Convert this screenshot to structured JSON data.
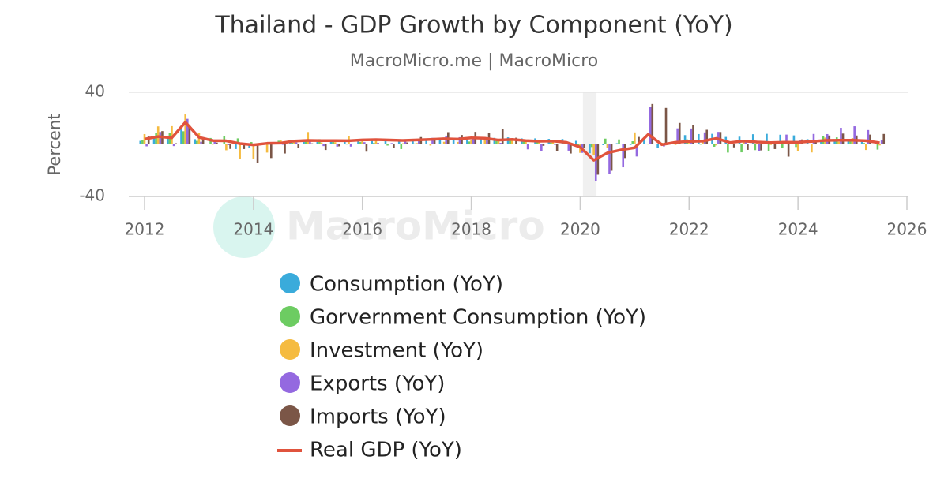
{
  "chart_data": {
    "type": "bar",
    "title": "Thailand - GDP Growth by Component (YoY)",
    "subtitle": "MacroMicro.me | MacroMicro",
    "watermark": "MacroMicro",
    "y_label": "Percent",
    "xlim": [
      2012,
      2026
    ],
    "xticks": [
      2012,
      2014,
      2016,
      2018,
      2020,
      2022,
      2024,
      2026
    ],
    "ylim": [
      -40,
      40
    ],
    "yticks": [
      -40,
      40
    ],
    "grid": true,
    "shaded_band": [
      2020.05,
      2020.3
    ],
    "x": [
      2012,
      2012.25,
      2012.5,
      2012.75,
      2013,
      2013.25,
      2013.5,
      2013.75,
      2014,
      2014.25,
      2014.5,
      2014.75,
      2015,
      2015.25,
      2015.5,
      2015.75,
      2016,
      2016.25,
      2016.5,
      2016.75,
      2017,
      2017.25,
      2017.5,
      2017.75,
      2018,
      2018.25,
      2018.5,
      2018.75,
      2019,
      2019.25,
      2019.5,
      2019.75,
      2020,
      2020.25,
      2020.5,
      2020.75,
      2021,
      2021.25,
      2021.5,
      2021.75,
      2022,
      2022.25,
      2022.5,
      2022.75,
      2023,
      2023.25,
      2023.5,
      2023.75,
      2024,
      2024.25,
      2024.5,
      2024.75,
      2025,
      2025.25,
      2025.5
    ],
    "series": [
      {
        "name": "Consumption (YoY)",
        "color": "#3aabdb",
        "values": [
          2.7,
          6.0,
          6.7,
          12.0,
          4.0,
          0.2,
          0.3,
          -3.6,
          -2.8,
          -0.2,
          0.7,
          2.4,
          2.6,
          1.9,
          2.3,
          2.1,
          2.4,
          3.8,
          3.1,
          3.5,
          3.2,
          3.0,
          3.2,
          3.6,
          3.6,
          4.5,
          5.0,
          5.4,
          4.6,
          4.6,
          4.2,
          4.1,
          2.7,
          -6.8,
          -0.6,
          0.9,
          -0.4,
          4.6,
          -3.0,
          0.3,
          7.1,
          7.9,
          8.1,
          5.7,
          5.9,
          7.8,
          8.1,
          7.4,
          6.9,
          4.0,
          3.4,
          3.4,
          2.6,
          2.2,
          1.0
        ]
      },
      {
        "name": "Gorvernment Consumption (YoY)",
        "color": "#6dcc62",
        "values": [
          3.2,
          8.6,
          8.9,
          10.1,
          2.7,
          4.9,
          6.4,
          4.6,
          1.8,
          0.2,
          2.8,
          1.2,
          3.1,
          4.0,
          2.4,
          -0.1,
          1.8,
          1.1,
          -0.9,
          -3.6,
          0.7,
          0.1,
          0.3,
          0.3,
          2.2,
          0.6,
          2.6,
          2.7,
          2.2,
          1.6,
          1.4,
          0.9,
          -2.9,
          -2.0,
          4.4,
          3.8,
          2.4,
          0.5,
          2.1,
          1.4,
          3.8,
          -0.2,
          -1.8,
          -6.3,
          -6.1,
          -4.4,
          -4.9,
          -3.0,
          -2.0,
          0.3,
          6.5,
          5.4,
          3.4,
          1.1,
          -4.0
        ]
      },
      {
        "name": "Investment (YoY)",
        "color": "#f5bb40",
        "values": [
          7.9,
          13.8,
          14.0,
          23.0,
          8.5,
          -0.2,
          -4.5,
          -10.9,
          -10.9,
          -6.3,
          3.0,
          2.6,
          9.5,
          1.5,
          1.7,
          6.5,
          4.1,
          2.8,
          0.2,
          0.9,
          1.0,
          -0.9,
          2.0,
          1.9,
          3.1,
          3.1,
          2.8,
          4.1,
          3.3,
          2.2,
          2.6,
          1.7,
          -6.5,
          -8.0,
          -2.6,
          0.4,
          9.2,
          -0.1,
          1.2,
          -0.4,
          1.1,
          1.6,
          -0.8,
          0.9,
          3.2,
          1.1,
          -0.4,
          0.2,
          -5.0,
          -6.2,
          5.2,
          2.0,
          4.8,
          -4.3,
          -0.8
        ]
      },
      {
        "name": "Exports (YoY)",
        "color": "#9469e0",
        "values": [
          -1.5,
          9.5,
          -1.3,
          19.6,
          2.0,
          2.9,
          -0.6,
          0.0,
          -0.2,
          -0.1,
          -0.3,
          1.5,
          2.3,
          -1.3,
          -1.7,
          -1.7,
          1.7,
          1.2,
          1.0,
          3.0,
          3.2,
          5.0,
          6.7,
          5.5,
          4.7,
          4.6,
          1.2,
          0.5,
          -3.8,
          -4.9,
          -0.4,
          -4.8,
          -6.5,
          -28.3,
          -22.6,
          -17.6,
          -9.3,
          28.8,
          -1.6,
          12.3,
          12.2,
          9.2,
          9.6,
          1.4,
          1.5,
          -4.9,
          2.2,
          7.5,
          3.2,
          8.0,
          7.9,
          12.7,
          13.9,
          11.0,
          3.0
        ]
      },
      {
        "name": "Imports (YoY)",
        "color": "#7b5647",
        "values": [
          6.0,
          10.2,
          0.9,
          14.3,
          5.5,
          1.4,
          -3.5,
          -3.6,
          -14.5,
          -10.5,
          -7.0,
          -2.6,
          0.8,
          -4.3,
          -1.5,
          0.2,
          -5.6,
          0.5,
          -3.0,
          1.5,
          5.6,
          4.9,
          9.4,
          7.2,
          9.6,
          8.7,
          12.0,
          5.1,
          0.1,
          -1.1,
          -5.4,
          -7.0,
          -2.9,
          -23.3,
          -20.3,
          -10.5,
          5.7,
          31.0,
          28.0,
          16.5,
          15.1,
          11.2,
          9.5,
          -2.3,
          -4.2,
          -4.6,
          -3.6,
          -9.4,
          3.8,
          1.6,
          6.8,
          8.3,
          6.8,
          7.5,
          8.0
        ]
      },
      {
        "name": "Real GDP (YoY)",
        "type": "line",
        "color": "#e0533d",
        "values": [
          4.0,
          6.0,
          5.0,
          17.0,
          5.4,
          2.9,
          2.7,
          0.6,
          -0.4,
          0.8,
          1.0,
          2.6,
          3.0,
          2.9,
          2.9,
          2.8,
          3.4,
          3.6,
          3.3,
          3.0,
          3.4,
          3.8,
          4.3,
          4.0,
          5.0,
          4.7,
          3.3,
          3.8,
          2.9,
          2.4,
          2.6,
          1.5,
          -2.1,
          -12.2,
          -6.5,
          -4.2,
          -2.6,
          7.7,
          -0.2,
          1.6,
          2.3,
          2.5,
          4.6,
          1.4,
          2.6,
          1.8,
          1.4,
          1.7,
          1.6,
          2.3,
          3.0,
          3.2,
          3.2,
          2.8,
          1.2
        ]
      }
    ]
  }
}
